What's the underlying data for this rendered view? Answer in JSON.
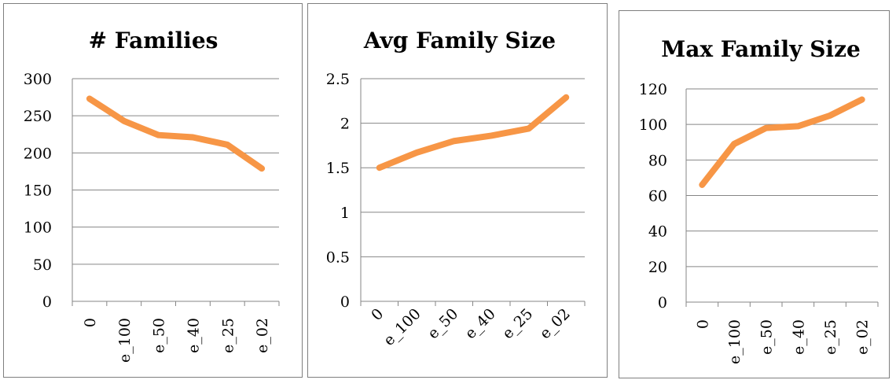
{
  "colors": {
    "series": "#F79646"
  },
  "chart_data": [
    {
      "type": "line",
      "title": "# Families",
      "categories": [
        "0",
        "e_100",
        "e_50",
        "e_40",
        "e_25",
        "e_02"
      ],
      "values": [
        273,
        243,
        224,
        221,
        211,
        179
      ],
      "yticks": [
        "300",
        "250",
        "200",
        "150",
        "100",
        "50",
        "0"
      ],
      "ylim": [
        0,
        300
      ],
      "xlabel_rotation": "vertical",
      "grid": true,
      "legend": "none"
    },
    {
      "type": "line",
      "title": "Avg Family Size",
      "categories": [
        "0",
        "e_100",
        "e_50",
        "e_40",
        "e_25",
        "e_02"
      ],
      "values": [
        1.5,
        1.67,
        1.8,
        1.86,
        1.94,
        2.29
      ],
      "yticks": [
        "2.5",
        "2",
        "1.5",
        "1",
        "0.5",
        "0"
      ],
      "ylim": [
        0,
        2.5
      ],
      "xlabel_rotation": "diagonal",
      "grid": true,
      "legend": "none"
    },
    {
      "type": "line",
      "title": "Max Family Size",
      "categories": [
        "0",
        "e_100",
        "e_50",
        "e_40",
        "e_25",
        "e_02"
      ],
      "values": [
        66,
        89,
        98,
        99,
        105,
        114
      ],
      "yticks": [
        "120",
        "100",
        "80",
        "60",
        "40",
        "20",
        "0"
      ],
      "ylim": [
        0,
        120
      ],
      "xlabel_rotation": "vertical",
      "grid": true,
      "legend": "none"
    }
  ]
}
